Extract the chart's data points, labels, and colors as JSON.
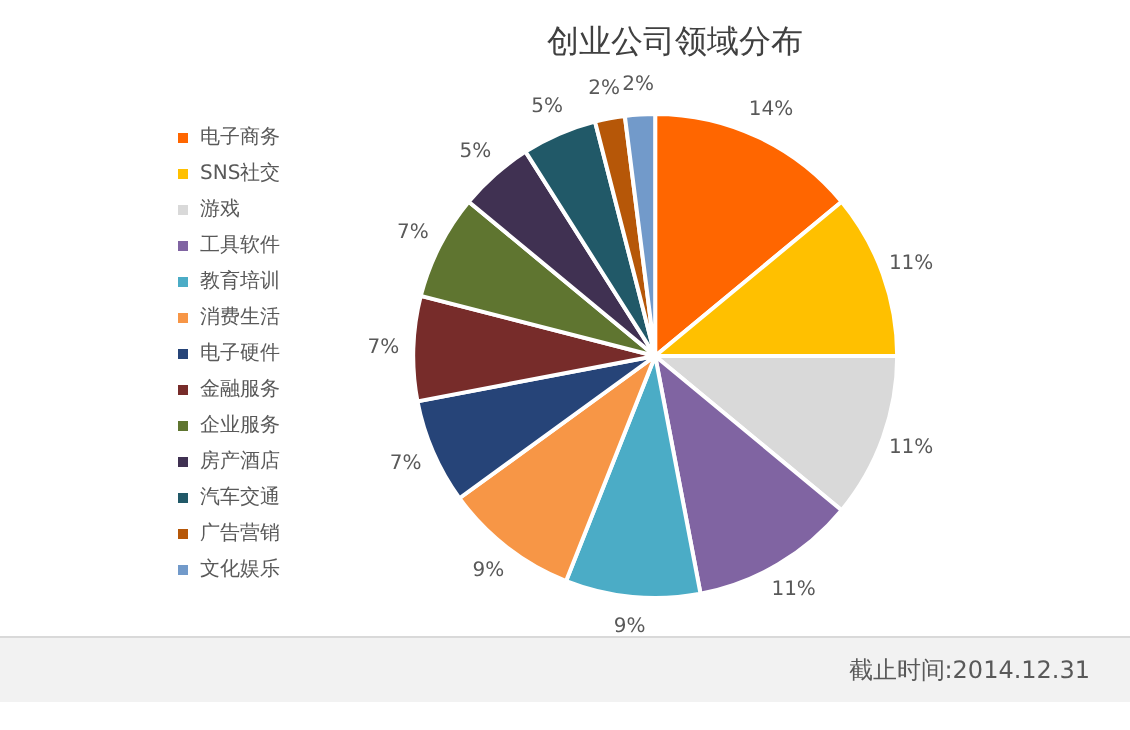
{
  "chart_data": {
    "type": "pie",
    "title": "创业公司领域分布",
    "categories": [
      "电子商务",
      "SNS社交",
      "游戏",
      "工具软件",
      "教育培训",
      "消费生活",
      "电子硬件",
      "金融服务",
      "企业服务",
      "房产酒店",
      "汽车交通",
      "广告营销",
      "文化娱乐"
    ],
    "values": [
      14,
      11,
      11,
      11,
      9,
      9,
      7,
      7,
      7,
      5,
      5,
      2,
      2
    ],
    "value_labels": [
      "14%",
      "11%",
      "11%",
      "11%",
      "9%",
      "9%",
      "7%",
      "7%",
      "7%",
      "5%",
      "5%",
      "2%",
      "2%"
    ],
    "colors": [
      "#ff6600",
      "#ffc000",
      "#d9d9d9",
      "#8064a2",
      "#4bacc6",
      "#f79646",
      "#264478",
      "#772c2a",
      "#5f7530",
      "#403152",
      "#215968",
      "#b65708",
      "#729aca"
    ],
    "legend": "left",
    "annotations": [
      "截止时间:2014.12.31"
    ]
  }
}
